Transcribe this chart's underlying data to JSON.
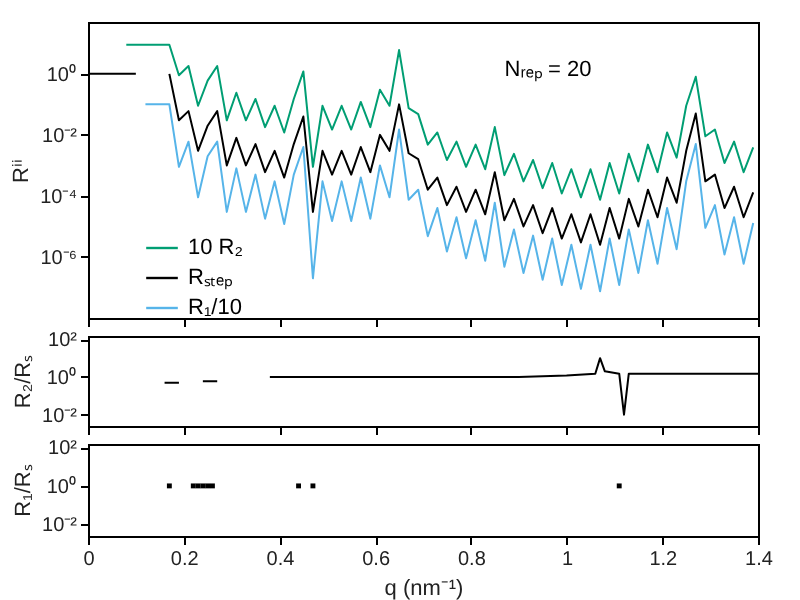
{
  "chart_data": [
    {
      "type": "line",
      "ylabel": "Rⁱⁱ",
      "xlim": [
        0,
        1.4
      ],
      "xticks": [
        0,
        0.2,
        0.4,
        0.6,
        0.8,
        1,
        1.2,
        1.4
      ],
      "ylim": [
        1e-08,
        50
      ],
      "log": true,
      "yticks": [
        {
          "value": 1e-06,
          "label": "10⁻⁶"
        },
        {
          "value": 0.0001,
          "label": "10⁻⁴"
        },
        {
          "value": 0.01,
          "label": "10⁻²"
        },
        {
          "value": 1,
          "label": "10⁰"
        }
      ],
      "tick_labels": "y",
      "grid": false,
      "legend": "left",
      "annotations": [
        "Nᵣₑₚ = 20"
      ],
      "series": [
        {
          "name": "10 R₂",
          "color": "#009e73",
          "x": [
            0.08,
            0.17,
            0.19,
            0.21,
            0.23,
            0.25,
            0.27,
            0.29,
            0.31,
            0.33,
            0.35,
            0.37,
            0.39,
            0.41,
            0.43,
            0.45,
            0.47,
            0.49,
            0.51,
            0.53,
            0.55,
            0.57,
            0.59,
            0.61,
            0.63,
            0.65,
            0.67,
            0.69,
            0.71,
            0.73,
            0.75,
            0.77,
            0.79,
            0.81,
            0.83,
            0.85,
            0.87,
            0.89,
            0.91,
            0.93,
            0.95,
            0.97,
            0.99,
            1.01,
            1.03,
            1.05,
            1.07,
            1.09,
            1.11,
            1.13,
            1.15,
            1.17,
            1.19,
            1.21,
            1.23,
            1.25,
            1.27,
            1.29,
            1.31,
            1.33,
            1.35,
            1.37,
            1.39
          ],
          "values": [
            9,
            9,
            0.9,
            1.8,
            0.09,
            0.6,
            1.8,
            0.03,
            0.24,
            0.03,
            0.15,
            0.018,
            0.09,
            0.012,
            0.15,
            1.2,
            0.0009,
            0.09,
            0.015,
            0.09,
            0.015,
            0.12,
            0.018,
            0.3,
            0.09,
            6,
            0.075,
            0.048,
            0.0048,
            0.012,
            0.0015,
            0.006,
            0.0009,
            0.0048,
            0.00075,
            0.018,
            0.00048,
            0.0024,
            0.0003,
            0.0015,
            0.00018,
            0.0012,
            0.00012,
            0.00075,
            9e-05,
            0.00075,
            7.5e-05,
            0.0012,
            0.00012,
            0.0024,
            0.0003,
            0.0048,
            0.0006,
            0.012,
            0.0018,
            0.09,
            0.8,
            0.009,
            0.015,
            0.0012,
            0.006,
            0.0006,
            0.0039
          ]
        },
        {
          "name": "Rₛₜₑₚ",
          "color": "#000000",
          "x": [
            0,
            0.1,
            0.13,
            0.17,
            0.19,
            0.21,
            0.23,
            0.25,
            0.27,
            0.29,
            0.31,
            0.33,
            0.35,
            0.37,
            0.39,
            0.41,
            0.43,
            0.45,
            0.47,
            0.49,
            0.51,
            0.53,
            0.55,
            0.57,
            0.59,
            0.61,
            0.63,
            0.65,
            0.67,
            0.69,
            0.71,
            0.73,
            0.75,
            0.77,
            0.79,
            0.81,
            0.83,
            0.85,
            0.87,
            0.89,
            0.91,
            0.93,
            0.95,
            0.97,
            0.99,
            1.01,
            1.03,
            1.05,
            1.07,
            1.09,
            1.11,
            1.13,
            1.15,
            1.17,
            1.19,
            1.21,
            1.23,
            1.25,
            1.27,
            1.29,
            1.31,
            1.33,
            1.35,
            1.37,
            1.39
          ],
          "values": [
            1,
            1,
            null,
            1,
            0.03,
            0.06,
            0.003,
            0.02,
            0.06,
            0.001,
            0.008,
            0.001,
            0.005,
            0.0006,
            0.003,
            0.0004,
            0.005,
            0.04,
            3e-05,
            0.003,
            0.0005,
            0.003,
            0.0005,
            0.004,
            0.0006,
            0.01,
            0.003,
            0.1,
            0.0025,
            0.0016,
            0.00016,
            0.0004,
            5e-05,
            0.0002,
            3e-05,
            0.00016,
            2.5e-05,
            0.0006,
            1.6e-05,
            8e-05,
            1e-05,
            5e-05,
            6e-06,
            4e-05,
            4e-06,
            2.5e-05,
            3e-06,
            2.5e-05,
            2.5e-06,
            4e-05,
            4e-06,
            8e-05,
            1e-05,
            0.00016,
            2e-05,
            0.0004,
            6e-05,
            0.003,
            0.05,
            0.0003,
            0.0005,
            4e-05,
            0.0002,
            2e-05,
            0.00013
          ]
        },
        {
          "name": "R₁/10",
          "color": "#56b4e9",
          "x": [
            0.12,
            0.17,
            0.19,
            0.21,
            0.23,
            0.25,
            0.27,
            0.29,
            0.31,
            0.33,
            0.35,
            0.37,
            0.39,
            0.41,
            0.43,
            0.45,
            0.47,
            0.49,
            0.51,
            0.53,
            0.55,
            0.57,
            0.59,
            0.61,
            0.63,
            0.65,
            0.67,
            0.69,
            0.71,
            0.73,
            0.75,
            0.77,
            0.79,
            0.81,
            0.83,
            0.85,
            0.87,
            0.89,
            0.91,
            0.93,
            0.95,
            0.97,
            0.99,
            1.01,
            1.03,
            1.05,
            1.07,
            1.09,
            1.11,
            1.13,
            1.15,
            1.17,
            1.19,
            1.21,
            1.23,
            1.25,
            1.27,
            1.29,
            1.31,
            1.33,
            1.35,
            1.37,
            1.39
          ],
          "values": [
            0.1,
            0.1,
            0.0009,
            0.006,
            9e-05,
            0.002,
            0.006,
            3e-05,
            0.0008,
            3e-05,
            0.0005,
            1.8e-05,
            0.0003,
            1.2e-05,
            0.0005,
            0.004,
            2e-07,
            0.0003,
            1.5e-05,
            0.0003,
            1.5e-05,
            0.0004,
            1.8e-05,
            0.001,
            9e-05,
            0.015,
            7.5e-05,
            0.00016,
            4.8e-06,
            4e-05,
            1.5e-06,
            2e-05,
            9e-07,
            1.6e-05,
            7.5e-07,
            6e-05,
            4.8e-07,
            8e-06,
            3e-07,
            5e-06,
            1.8e-07,
            4e-06,
            1.2e-07,
            2.5e-06,
            9e-08,
            2.5e-06,
            7.5e-08,
            4e-06,
            1.2e-07,
            8e-06,
            3e-07,
            1.6e-05,
            6e-07,
            4e-05,
            1.8e-06,
            0.0003,
            0.005,
            9e-06,
            5e-05,
            1.2e-06,
            2e-05,
            6e-07,
            1.3e-05
          ]
        }
      ]
    },
    {
      "type": "line",
      "ylabel": "R₂/Rₛ",
      "xlim": [
        0,
        1.4
      ],
      "xticks": [
        0,
        0.2,
        0.4,
        0.6,
        0.8,
        1,
        1.2,
        1.4
      ],
      "ylim": [
        0.0025,
        150
      ],
      "log": true,
      "yticks": [
        {
          "value": 0.01,
          "label": "10⁻²"
        },
        {
          "value": 1,
          "label": "10⁰"
        },
        {
          "value": 100,
          "label": "10²"
        }
      ],
      "tick_labels": "y",
      "grid": false,
      "series": [
        {
          "color": "#000000",
          "x": [
            0.16,
            0.19,
            0.215,
            0.24,
            0.27,
            0.3,
            0.38,
            0.45,
            0.5,
            0.6,
            0.7,
            0.8,
            0.9,
            1.0,
            1.06,
            1.07,
            1.08,
            1.11,
            1.12,
            1.13,
            1.2,
            1.3,
            1.4
          ],
          "values": [
            0.5,
            0.5,
            null,
            0.6,
            0.6,
            null,
            1,
            1,
            1,
            1,
            1,
            1,
            1,
            1.2,
            1.5,
            10,
            2,
            1.5,
            0.01,
            1.5,
            1.5,
            1.5,
            1.5
          ]
        }
      ]
    },
    {
      "type": "scatter",
      "ylabel": "R₁/Rₛ",
      "xlabel": "q (nm⁻¹)",
      "xlim": [
        0,
        1.4
      ],
      "xticks": [
        0,
        0.2,
        0.4,
        0.6,
        0.8,
        1,
        1.2,
        1.4
      ],
      "ylim": [
        0.0025,
        150
      ],
      "log": true,
      "yticks": [
        {
          "value": 0.01,
          "label": "10⁻²"
        },
        {
          "value": 1,
          "label": "10⁰"
        },
        {
          "value": 100,
          "label": "10²"
        }
      ],
      "grid": false,
      "marker": "square",
      "series": [
        {
          "color": "#000000",
          "x": [
            0.17,
            0.22,
            0.23,
            0.24,
            0.25,
            0.26,
            0.44,
            0.47,
            1.11
          ],
          "values": [
            1,
            1,
            1,
            1,
            1,
            1,
            1,
            1,
            1
          ]
        }
      ]
    }
  ]
}
